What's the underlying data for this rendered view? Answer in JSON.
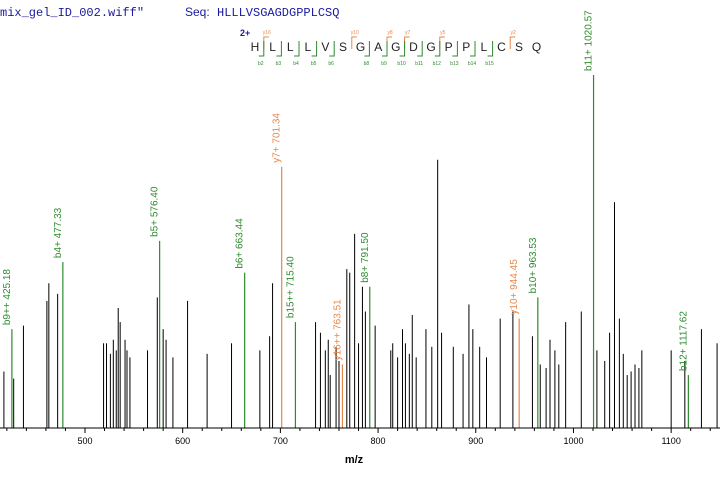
{
  "header": {
    "file_label": "mix_gel_ID_002.wiff\"",
    "seq_label": "Seq:",
    "seq_value": "HLLLVSGAGDGPPLCSQ"
  },
  "sequence": {
    "charge": "2+",
    "residues": [
      "H",
      "L",
      "L",
      "L",
      "V",
      "S",
      "G",
      "A",
      "G",
      "D",
      "G",
      "P",
      "P",
      "L",
      "C",
      "S",
      "Q"
    ],
    "b_marks": [
      {
        "after": 1,
        "label": "b2"
      },
      {
        "after": 2,
        "label": "b3"
      },
      {
        "after": 3,
        "label": "b4"
      },
      {
        "after": 4,
        "label": "b5"
      },
      {
        "after": 5,
        "label": "b6"
      },
      {
        "after": 7,
        "label": "b8"
      },
      {
        "after": 8,
        "label": "b9"
      },
      {
        "after": 9,
        "label": "b10"
      },
      {
        "after": 10,
        "label": "b11"
      },
      {
        "after": 11,
        "label": "b12"
      },
      {
        "after": 12,
        "label": "b13"
      },
      {
        "after": 13,
        "label": "b14"
      },
      {
        "after": 14,
        "label": "b15"
      }
    ],
    "y_marks": [
      {
        "after": 1,
        "label": "y16"
      },
      {
        "after": 6,
        "label": "y10"
      },
      {
        "after": 8,
        "label": "y8"
      },
      {
        "after": 9,
        "label": "y7"
      },
      {
        "after": 11,
        "label": "y5"
      },
      {
        "after": 15,
        "label": "y2"
      }
    ]
  },
  "colors": {
    "b_ion": "#2e8b2e",
    "y_ion": "#e8874a",
    "unassigned": "#000000",
    "axis": "#000000",
    "header_text": "#1a1aa0"
  },
  "chart_data": {
    "type": "bar",
    "xlabel": "m/z",
    "ylabel": "",
    "xlim": [
      413,
      1150
    ],
    "ylim": [
      0,
      100
    ],
    "x_ticks": [
      500,
      600,
      700,
      800,
      900,
      1000,
      1100
    ],
    "labeled_peaks": [
      {
        "mz": 425.18,
        "intensity": 28,
        "label": "b9++ 425.18",
        "ion": "b"
      },
      {
        "mz": 477.33,
        "intensity": 47,
        "label": "b4+ 477.33",
        "ion": "b"
      },
      {
        "mz": 576.4,
        "intensity": 53,
        "label": "b5+ 576.40",
        "ion": "b"
      },
      {
        "mz": 663.44,
        "intensity": 44,
        "label": "b6+ 663.44",
        "ion": "b"
      },
      {
        "mz": 701.34,
        "intensity": 74,
        "label": "y7+ 701.34",
        "ion": "y"
      },
      {
        "mz": 715.4,
        "intensity": 30,
        "label": "b15++ 715.40",
        "ion": "b"
      },
      {
        "mz": 763.51,
        "intensity": 18,
        "label": "y16++ 763.51",
        "ion": "y"
      },
      {
        "mz": 791.5,
        "intensity": 40,
        "label": "b8+ 791.50",
        "ion": "b"
      },
      {
        "mz": 944.45,
        "intensity": 31,
        "label": "y10+ 944.45",
        "ion": "y"
      },
      {
        "mz": 963.53,
        "intensity": 37,
        "label": "b10+ 963.53",
        "ion": "b"
      },
      {
        "mz": 1020.57,
        "intensity": 100,
        "label": "b11+ 1020.57",
        "ion": "b"
      },
      {
        "mz": 1117.62,
        "intensity": 15,
        "label": "b12+ 1117.62",
        "ion": "b"
      }
    ],
    "unlabeled_peaks": [
      [
        417,
        16
      ],
      [
        427,
        14
      ],
      [
        437,
        29
      ],
      [
        461,
        36
      ],
      [
        463,
        41
      ],
      [
        472,
        38
      ],
      [
        519,
        24
      ],
      [
        522,
        24
      ],
      [
        526,
        21
      ],
      [
        529,
        25
      ],
      [
        532,
        22
      ],
      [
        534,
        34
      ],
      [
        536,
        30
      ],
      [
        541,
        25
      ],
      [
        543,
        22
      ],
      [
        546,
        20
      ],
      [
        564,
        22
      ],
      [
        574,
        37
      ],
      [
        580,
        28
      ],
      [
        583,
        25
      ],
      [
        590,
        20
      ],
      [
        605,
        36
      ],
      [
        625,
        21
      ],
      [
        650,
        24
      ],
      [
        679,
        22
      ],
      [
        689,
        26
      ],
      [
        692,
        41
      ],
      [
        736,
        30
      ],
      [
        741,
        27
      ],
      [
        746,
        22
      ],
      [
        749,
        25
      ],
      [
        751,
        15
      ],
      [
        757,
        23
      ],
      [
        760,
        19
      ],
      [
        768,
        45
      ],
      [
        771,
        44
      ],
      [
        776,
        55
      ],
      [
        780,
        24
      ],
      [
        784,
        40
      ],
      [
        787,
        33
      ],
      [
        797,
        29
      ],
      [
        813,
        22
      ],
      [
        815,
        24
      ],
      [
        820,
        20
      ],
      [
        825,
        28
      ],
      [
        828,
        24
      ],
      [
        832,
        21
      ],
      [
        835,
        32
      ],
      [
        839,
        20
      ],
      [
        849,
        28
      ],
      [
        855,
        23
      ],
      [
        861,
        76
      ],
      [
        865,
        27
      ],
      [
        877,
        23
      ],
      [
        887,
        21
      ],
      [
        893,
        35
      ],
      [
        897,
        28
      ],
      [
        904,
        23
      ],
      [
        911,
        20
      ],
      [
        925,
        31
      ],
      [
        938,
        33
      ],
      [
        958,
        26
      ],
      [
        966,
        18
      ],
      [
        972,
        17
      ],
      [
        976,
        25
      ],
      [
        981,
        22
      ],
      [
        985,
        18
      ],
      [
        992,
        30
      ],
      [
        1008,
        33
      ],
      [
        1024,
        22
      ],
      [
        1032,
        19
      ],
      [
        1037,
        27
      ],
      [
        1042,
        64
      ],
      [
        1047,
        31
      ],
      [
        1051,
        21
      ],
      [
        1055,
        15
      ],
      [
        1059,
        16
      ],
      [
        1063,
        18
      ],
      [
        1067,
        17
      ],
      [
        1070,
        22
      ],
      [
        1100,
        22
      ],
      [
        1114,
        19
      ],
      [
        1131,
        28
      ],
      [
        1147,
        24
      ]
    ]
  }
}
